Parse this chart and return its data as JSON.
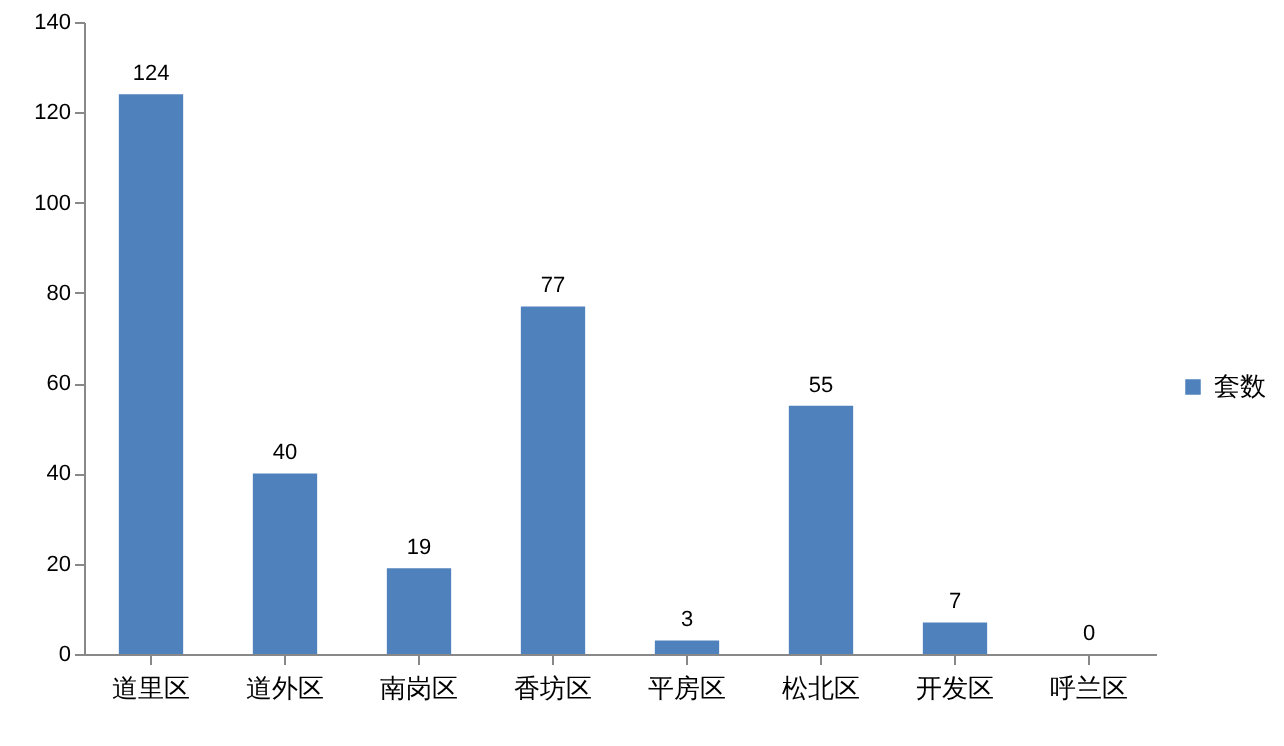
{
  "chart_data": {
    "type": "bar",
    "categories": [
      "道里区",
      "道外区",
      "南岗区",
      "香坊区",
      "平房区",
      "松北区",
      "开发区",
      "呼兰区"
    ],
    "series": [
      {
        "name": "套数",
        "color": "#4f81bd",
        "values": [
          124,
          40,
          19,
          77,
          3,
          55,
          7,
          0
        ]
      }
    ],
    "ylim": [
      0,
      140
    ],
    "yticks": [
      0,
      20,
      40,
      60,
      80,
      100,
      120,
      140
    ],
    "data_labels": true,
    "legend": "right",
    "grid": false
  }
}
